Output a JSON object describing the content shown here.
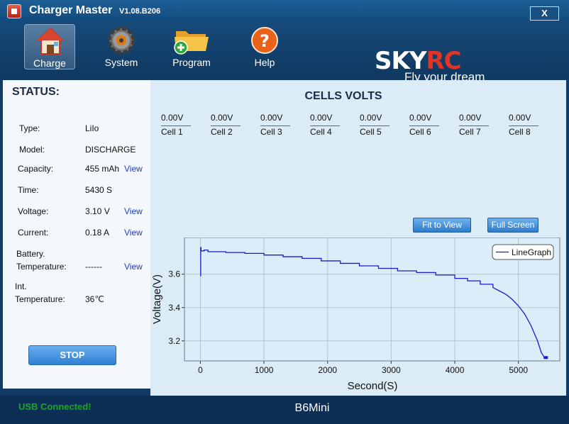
{
  "window": {
    "title": "Charger Master",
    "version": "V1.08.B206",
    "close_label": "X"
  },
  "toolbar": {
    "items": [
      {
        "label": "Charge",
        "icon": "house-icon",
        "active": true
      },
      {
        "label": "System",
        "icon": "gear-icon",
        "active": false
      },
      {
        "label": "Program",
        "icon": "folder-add-icon",
        "active": false
      },
      {
        "label": "Help",
        "icon": "help-icon",
        "active": false
      }
    ]
  },
  "logo": {
    "brand_left": "SKY",
    "brand_right": "RC",
    "tagline": "Fly your dream"
  },
  "status": {
    "title": "STATUS:",
    "type": {
      "label": "Type:",
      "value": "LiIo"
    },
    "model": {
      "label": "Model:",
      "value": "DISCHARGE"
    },
    "capacity": {
      "label": "Capacity:",
      "value": "455 mAh",
      "link": "View"
    },
    "time": {
      "label": "Time:",
      "value": "5430 S"
    },
    "voltage": {
      "label": "Voltage:",
      "value": "3.10 V",
      "link": "View"
    },
    "current": {
      "label": "Current:",
      "value": "0.18 A",
      "link": "View"
    },
    "battery_temp": {
      "label_line1": "Battery.",
      "label_line2": "Temperature:",
      "value": "------",
      "link": "View"
    },
    "int_temp": {
      "label_line1": "Int.",
      "label_line2": "Temperature:",
      "value": "36℃"
    },
    "stop_label": "STOP"
  },
  "cells": {
    "title": "CELLS VOLTS",
    "items": [
      {
        "value": "0.00V",
        "name": "Cell 1"
      },
      {
        "value": "0.00V",
        "name": "Cell 2"
      },
      {
        "value": "0.00V",
        "name": "Cell 3"
      },
      {
        "value": "0.00V",
        "name": "Cell 4"
      },
      {
        "value": "0.00V",
        "name": "Cell 5"
      },
      {
        "value": "0.00V",
        "name": "Cell 6"
      },
      {
        "value": "0.00V",
        "name": "Cell 7"
      },
      {
        "value": "0.00V",
        "name": "Cell 8"
      }
    ],
    "fit_label": "Fit to View",
    "fullscreen_label": "Full Screen"
  },
  "chart_data": {
    "type": "line",
    "xlabel": "Second(S)",
    "ylabel": "Voltage(V)",
    "xlim": [
      -250,
      5650
    ],
    "ylim": [
      3.08,
      3.82
    ],
    "xticks": [
      0,
      1000,
      2000,
      3000,
      4000,
      5000
    ],
    "yticks": [
      3.2,
      3.4,
      3.6
    ],
    "ytick_labels": [
      "3.2",
      "3.4",
      "3.6"
    ],
    "grid": true,
    "legend": "top-right",
    "color": "#1a1ad6",
    "series": [
      {
        "name": "LineGraph",
        "x": [
          0,
          5,
          10,
          60,
          120,
          400,
          700,
          1000,
          1300,
          1600,
          1900,
          2200,
          2500,
          2800,
          3100,
          3400,
          3700,
          4000,
          4200,
          4400,
          4600,
          4700,
          4800,
          4900,
          5000,
          5100,
          5200,
          5300,
          5360,
          5400,
          5430
        ],
        "y": [
          3.59,
          3.76,
          3.74,
          3.745,
          3.735,
          3.73,
          3.725,
          3.715,
          3.705,
          3.695,
          3.68,
          3.665,
          3.65,
          3.635,
          3.62,
          3.61,
          3.595,
          3.575,
          3.56,
          3.54,
          3.52,
          3.5,
          3.48,
          3.45,
          3.41,
          3.36,
          3.29,
          3.2,
          3.13,
          3.105,
          3.1
        ]
      }
    ]
  },
  "bottom": {
    "usb_status": "USB  Connected!",
    "device": "B6Mini"
  }
}
